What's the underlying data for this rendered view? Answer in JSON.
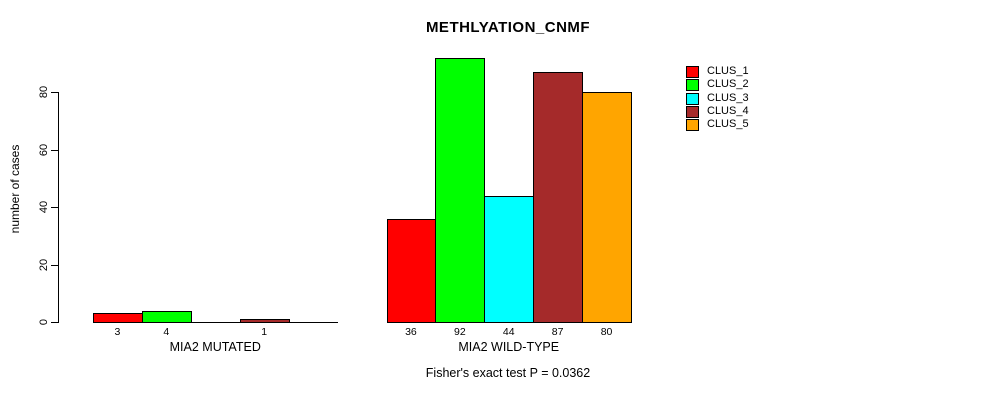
{
  "chart_data": {
    "type": "bar",
    "title": "METHLYATION_CNMF",
    "ylabel": "number of cases",
    "xlabel": "",
    "annotation": "Fisher's exact test P = 0.0362",
    "y_ticks": [
      0,
      20,
      40,
      60,
      80
    ],
    "ylim": [
      0,
      92
    ],
    "grid": false,
    "legend_position": "right",
    "bar_border_color": "#000000",
    "series": [
      {
        "name": "CLUS_1",
        "color": "#FF0000"
      },
      {
        "name": "CLUS_2",
        "color": "#00FF00"
      },
      {
        "name": "CLUS_3",
        "color": "#00FFFF"
      },
      {
        "name": "CLUS_4",
        "color": "#A52A2A"
      },
      {
        "name": "CLUS_5",
        "color": "#FFA500"
      }
    ],
    "groups": [
      {
        "label": "MIA2 MUTATED",
        "values": [
          3,
          4,
          0,
          1,
          0
        ]
      },
      {
        "label": "MIA2 WILD-TYPE",
        "values": [
          36,
          92,
          44,
          87,
          80
        ]
      }
    ]
  }
}
